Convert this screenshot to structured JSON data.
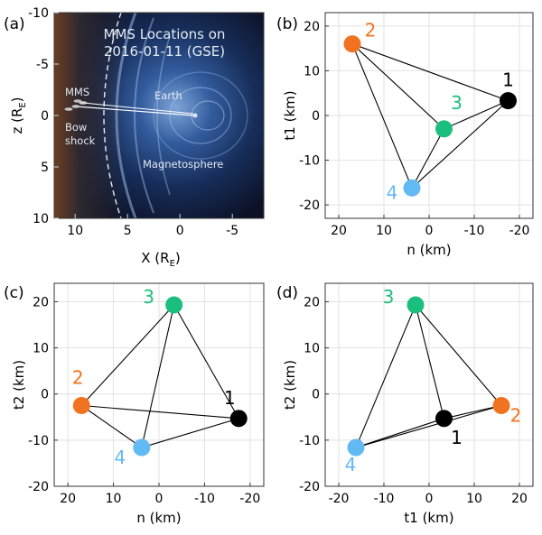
{
  "colors": {
    "probe_1": "#000000",
    "probe_2": "#f2731f",
    "probe_3": "#1bbf7d",
    "probe_4": "#63b9f2",
    "grid": "#e2e2e2",
    "axis": "#333333",
    "edge": "#000000"
  },
  "chart_data": [
    {
      "panel_label": "(a)",
      "type": "image",
      "title": "MMS Locations on 2016-01-11 (GSE)",
      "xlabel": "X (R_E)",
      "ylabel": "Z (R_E)",
      "xlim": [
        12,
        -8
      ],
      "ylim": [
        -10,
        10
      ],
      "xticks": [
        "10",
        "5",
        "0",
        "-5"
      ],
      "yticks": [
        "-10",
        "-5",
        "0",
        "5",
        "10"
      ],
      "annotations": [
        "MMS",
        "Earth",
        "Bow shock",
        "Magnetosphere"
      ]
    },
    {
      "panel_label": "(b)",
      "type": "scatter",
      "xlabel": "n (km)",
      "ylabel": "t1 (km)",
      "x_reversed": true,
      "y_reversed": true,
      "xlim": [
        23,
        -23
      ],
      "ylim": [
        23,
        -23
      ],
      "xticks": [
        20,
        10,
        0,
        -10,
        -20
      ],
      "yticks": [
        20,
        10,
        0,
        -10,
        -20
      ],
      "points": [
        {
          "label": "1",
          "x": -17.5,
          "y": 3.3
        },
        {
          "label": "2",
          "x": 17.0,
          "y": 16.0
        },
        {
          "label": "3",
          "x": -3.3,
          "y": -3.0
        },
        {
          "label": "4",
          "x": 3.8,
          "y": -16.2
        }
      ]
    },
    {
      "panel_label": "(c)",
      "type": "scatter",
      "xlabel": "n (km)",
      "ylabel": "t2 (km)",
      "x_reversed": true,
      "y_reversed": false,
      "xlim": [
        23,
        -23
      ],
      "ylim": [
        -20,
        24
      ],
      "xticks": [
        20,
        10,
        0,
        -10,
        -20
      ],
      "yticks": [
        20,
        10,
        0,
        -10,
        -20
      ],
      "points": [
        {
          "label": "1",
          "x": -17.5,
          "y": -5.3
        },
        {
          "label": "2",
          "x": 17.0,
          "y": -2.5
        },
        {
          "label": "3",
          "x": -3.3,
          "y": 19.3
        },
        {
          "label": "4",
          "x": 3.8,
          "y": -11.6
        }
      ]
    },
    {
      "panel_label": "(d)",
      "type": "scatter",
      "xlabel": "t1 (km)",
      "ylabel": "t2 (km)",
      "x_reversed": false,
      "y_reversed": false,
      "xlim": [
        -23,
        23
      ],
      "ylim": [
        -20,
        24
      ],
      "xticks": [
        -20,
        -10,
        0,
        10,
        20
      ],
      "yticks": [
        20,
        10,
        0,
        -10,
        -20
      ],
      "points": [
        {
          "label": "1",
          "x": 3.3,
          "y": -5.3
        },
        {
          "label": "2",
          "x": 16.0,
          "y": -2.5
        },
        {
          "label": "3",
          "x": -3.0,
          "y": 19.3
        },
        {
          "label": "4",
          "x": -16.2,
          "y": -11.6
        }
      ]
    }
  ]
}
